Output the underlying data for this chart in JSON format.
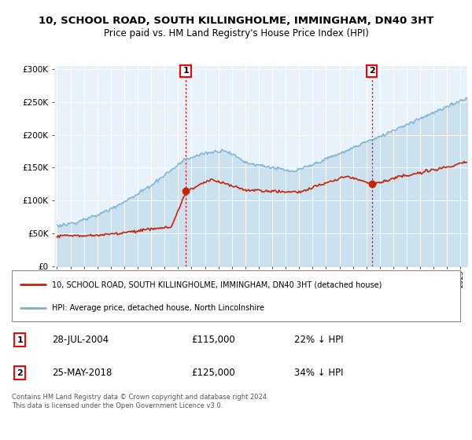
{
  "title": "10, SCHOOL ROAD, SOUTH KILLINGHOLME, IMMINGHAM, DN40 3HT",
  "subtitle": "Price paid vs. HM Land Registry's House Price Index (HPI)",
  "ylabel_ticks": [
    "£0",
    "£50K",
    "£100K",
    "£150K",
    "£200K",
    "£250K",
    "£300K"
  ],
  "ytick_vals": [
    0,
    50000,
    100000,
    150000,
    200000,
    250000,
    300000
  ],
  "ylim": [
    0,
    305000
  ],
  "xlim_start": 1994.8,
  "xlim_end": 2025.5,
  "hpi_color": "#7ab0d4",
  "hpi_fill_color": "#daeaf5",
  "price_color": "#cc2200",
  "marker1_x": 2004.57,
  "marker1_y": 115000,
  "marker2_x": 2018.4,
  "marker2_y": 125000,
  "legend_entries": [
    "10, SCHOOL ROAD, SOUTH KILLINGHOLME, IMMINGHAM, DN40 3HT (detached house)",
    "HPI: Average price, detached house, North Lincolnshire"
  ],
  "annotation1_label": "1",
  "annotation1_date": "28-JUL-2004",
  "annotation1_price": "£115,000",
  "annotation1_hpi": "22% ↓ HPI",
  "annotation2_label": "2",
  "annotation2_date": "25-MAY-2018",
  "annotation2_price": "£125,000",
  "annotation2_hpi": "34% ↓ HPI",
  "footer": "Contains HM Land Registry data © Crown copyright and database right 2024.\nThis data is licensed under the Open Government Licence v3.0.",
  "background_color": "#ffffff",
  "plot_bg_color": "#e8f2fa"
}
